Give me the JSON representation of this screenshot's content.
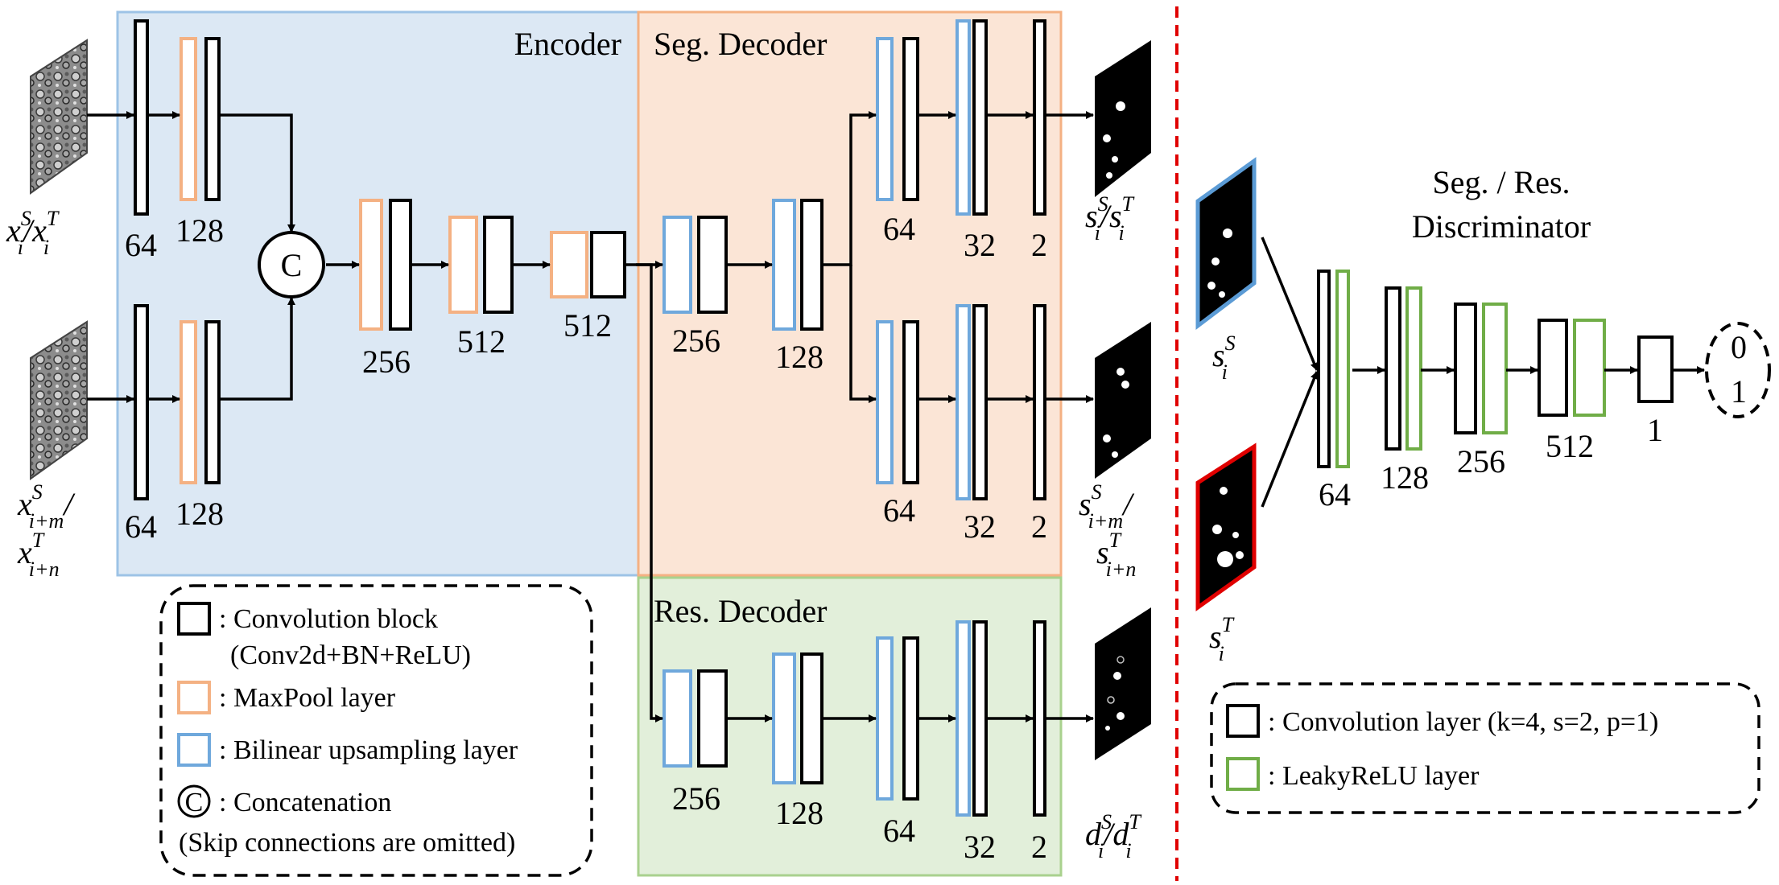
{
  "regions": {
    "encoder": "Encoder",
    "seg_decoder": "Seg. Decoder",
    "res_decoder": "Res. Decoder",
    "discriminator_line1": "Seg. / Res.",
    "discriminator_line2": "Discriminator"
  },
  "concat_symbol": "C",
  "channels": {
    "enc_top": [
      "64",
      "128"
    ],
    "enc_bottom": [
      "64",
      "128"
    ],
    "enc_main": [
      "256",
      "512",
      "512"
    ],
    "seg_shared": [
      "256",
      "128"
    ],
    "seg_top": [
      "64",
      "32",
      "2"
    ],
    "seg_bottom": [
      "64",
      "32",
      "2"
    ],
    "res": [
      "256",
      "128",
      "64",
      "32",
      "2"
    ],
    "disc": [
      "64",
      "128",
      "256",
      "512",
      "1"
    ]
  },
  "math_labels": {
    "input_top": {
      "base1": "x",
      "sup1": "S",
      "sub1": "i",
      "sep": "/",
      "base2": "x",
      "sup2": "T",
      "sub2": "i"
    },
    "input_bottom_l1": {
      "base": "x",
      "sup": "S",
      "sub": "i+m",
      "tail": "/"
    },
    "input_bottom_l2": {
      "base": "x",
      "sup": "T",
      "sub": "i+n"
    },
    "seg_out_top": {
      "base1": "s",
      "sup1": "S",
      "sub1": "i",
      "sep": "/",
      "base2": "s",
      "sup2": "T",
      "sub2": "i"
    },
    "seg_out_bottom_l1": {
      "base": "s",
      "sup": "S",
      "sub": "i+m",
      "tail": "/"
    },
    "seg_out_bottom_l2": {
      "base": "s",
      "sup": "T",
      "sub": "i+n"
    },
    "res_out": {
      "base1": "d",
      "sup1": "S",
      "sub1": "i",
      "sep": "/",
      "base2": "d",
      "sup2": "T",
      "sub2": "i"
    },
    "disc_in_source": {
      "base": "s",
      "sup": "S",
      "sub": "i"
    },
    "disc_in_target": {
      "base": "s",
      "sup": "T",
      "sub": "i"
    }
  },
  "discriminator_output": [
    "0",
    "1"
  ],
  "legend_left": {
    "conv_block_l1": ": Convolution block",
    "conv_block_l2": "(Conv2d+BN+ReLU)",
    "maxpool": ": MaxPool layer",
    "upsample": ": Bilinear upsampling layer",
    "concat_symbol": "C",
    "concat": ": Concatenation",
    "note": "(Skip connections are omitted)"
  },
  "legend_right": {
    "conv": ": Convolution layer (k=4, s=2, p=1)",
    "leaky": ": LeakyReLU layer"
  },
  "colors": {
    "encoder_bg": "#dce8f4",
    "encoder_border": "#9dc3e6",
    "seg_bg": "#fbe5d6",
    "seg_border": "#f4b183",
    "res_bg": "#e2efda",
    "res_border": "#a9d18e",
    "maxpool": "#f4b183",
    "upsample": "#6fa8dc",
    "leaky": "#70ad47",
    "divider": "#e00000",
    "source_frame": "#5b9bd5",
    "target_frame": "#e00000"
  }
}
